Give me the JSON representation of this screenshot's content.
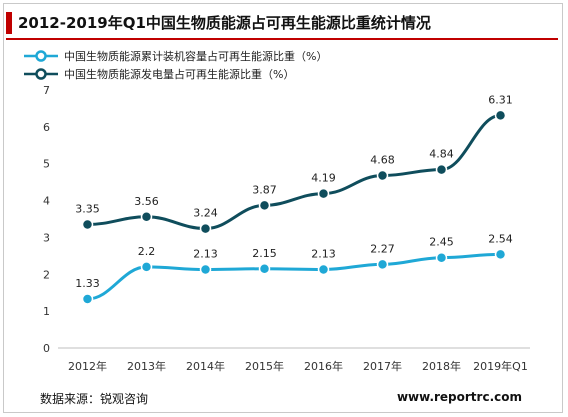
{
  "title": "2012-2019年Q1中国生物质能源占可再生能源比重统计情况",
  "footer": {
    "source": "数据来源：锐观咨询",
    "website": "www.reportrc.com"
  },
  "colors": {
    "accent": "#c00000",
    "series_light": "#1fa8d6",
    "series_dark": "#0f4d5c"
  },
  "chart_data": {
    "type": "line",
    "categories": [
      "2012年",
      "2013年",
      "2014年",
      "2015年",
      "2016年",
      "2017年",
      "2018年",
      "2019年Q1"
    ],
    "ylim": [
      0,
      7
    ],
    "yticks": [
      "0",
      "1",
      "2",
      "3",
      "4",
      "5",
      "6",
      "7"
    ],
    "grid": false,
    "legend_position": "top-left",
    "series": [
      {
        "name": "中国生物质能源累计装机容量占可再生能源比重（%）",
        "color": "#1fa8d6",
        "values": [
          1.33,
          2.2,
          2.13,
          2.15,
          2.13,
          2.27,
          2.45,
          2.54
        ],
        "labels": [
          "1.33",
          "2.2",
          "2.13",
          "2.15",
          "2.13",
          "2.27",
          "2.45",
          "2.54"
        ]
      },
      {
        "name": "中国生物质能源发电量占可再生能源比重（%）",
        "color": "#0f4d5c",
        "values": [
          3.35,
          3.56,
          3.24,
          3.87,
          4.19,
          4.68,
          4.84,
          6.31
        ],
        "labels": [
          "3.35",
          "3.56",
          "3.24",
          "3.87",
          "4.19",
          "4.68",
          "4.84",
          "6.31"
        ]
      }
    ]
  }
}
